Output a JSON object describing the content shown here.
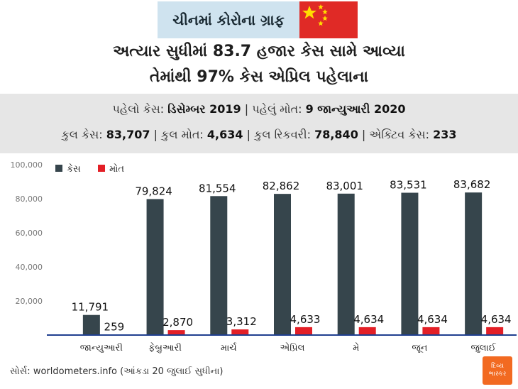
{
  "badge": {
    "title": "ચીનમાં કોરોના ગ્રાફ"
  },
  "headline": {
    "line1": "અત્યાર સુધીમાં 83.7 હજાર કેસ સામે આવ્યા",
    "line2": "તેમાંથી 97% કેસ એપ્રિલ પહેલાના"
  },
  "summary": {
    "first_case_label": "પહેલો કેસ:",
    "first_case_value": "ડિસેમ્બર 2019",
    "sep1": "|",
    "first_death_label": "પહેલું મોત:",
    "first_death_value": "9 જાન્યુઆરી 2020",
    "total_cases_label": "કુલ કેસ:",
    "total_cases_value": "83,707",
    "total_deaths_label": "કુલ મોત:",
    "total_deaths_value": "4,634",
    "total_recovered_label": "કુલ રિકવરી:",
    "total_recovered_value": "78,840",
    "active_label": "એક્ટિવ કેસ:",
    "active_value": "233"
  },
  "footer": {
    "source_label": "સોર્સ:",
    "source_text": "worldometers.info (આંકડા 20 જુલાઈ સુધીના)"
  },
  "logo": {
    "line1": "દિવ્ય",
    "line2": "ભાસ્કર"
  },
  "colors": {
    "cases": "#36454c",
    "deaths": "#e31f26",
    "axis": "#1f3f8f",
    "flag": "#e02a26",
    "star": "#ffde00"
  },
  "chart_data": {
    "type": "bar",
    "categories": [
      "જાન્યુઆરી",
      "ફેબ્રુઆરી",
      "માર્ચ",
      "એપ્રિલ",
      "મે",
      "જૂન",
      "જુલાઈ"
    ],
    "series": [
      {
        "name": "કેસ",
        "values": [
          11791,
          79824,
          81554,
          82862,
          83001,
          83531,
          83682
        ],
        "labels": [
          "11,791",
          "79,824",
          "81,554",
          "82,862",
          "83,001",
          "83,531",
          "83,682"
        ]
      },
      {
        "name": "મોત",
        "values": [
          259,
          2870,
          3312,
          4633,
          4634,
          4634,
          4634
        ],
        "labels": [
          "259",
          "2,870",
          "3,312",
          "4,633",
          "4,634",
          "4,634",
          "4,634"
        ]
      }
    ],
    "yticks": [
      20000,
      40000,
      60000,
      80000,
      100000
    ],
    "ytick_labels": [
      "20,000",
      "40,000",
      "60,000",
      "80,000",
      "100,000"
    ],
    "ylim": [
      0,
      100000
    ],
    "legend": "top-left",
    "grid": false
  }
}
